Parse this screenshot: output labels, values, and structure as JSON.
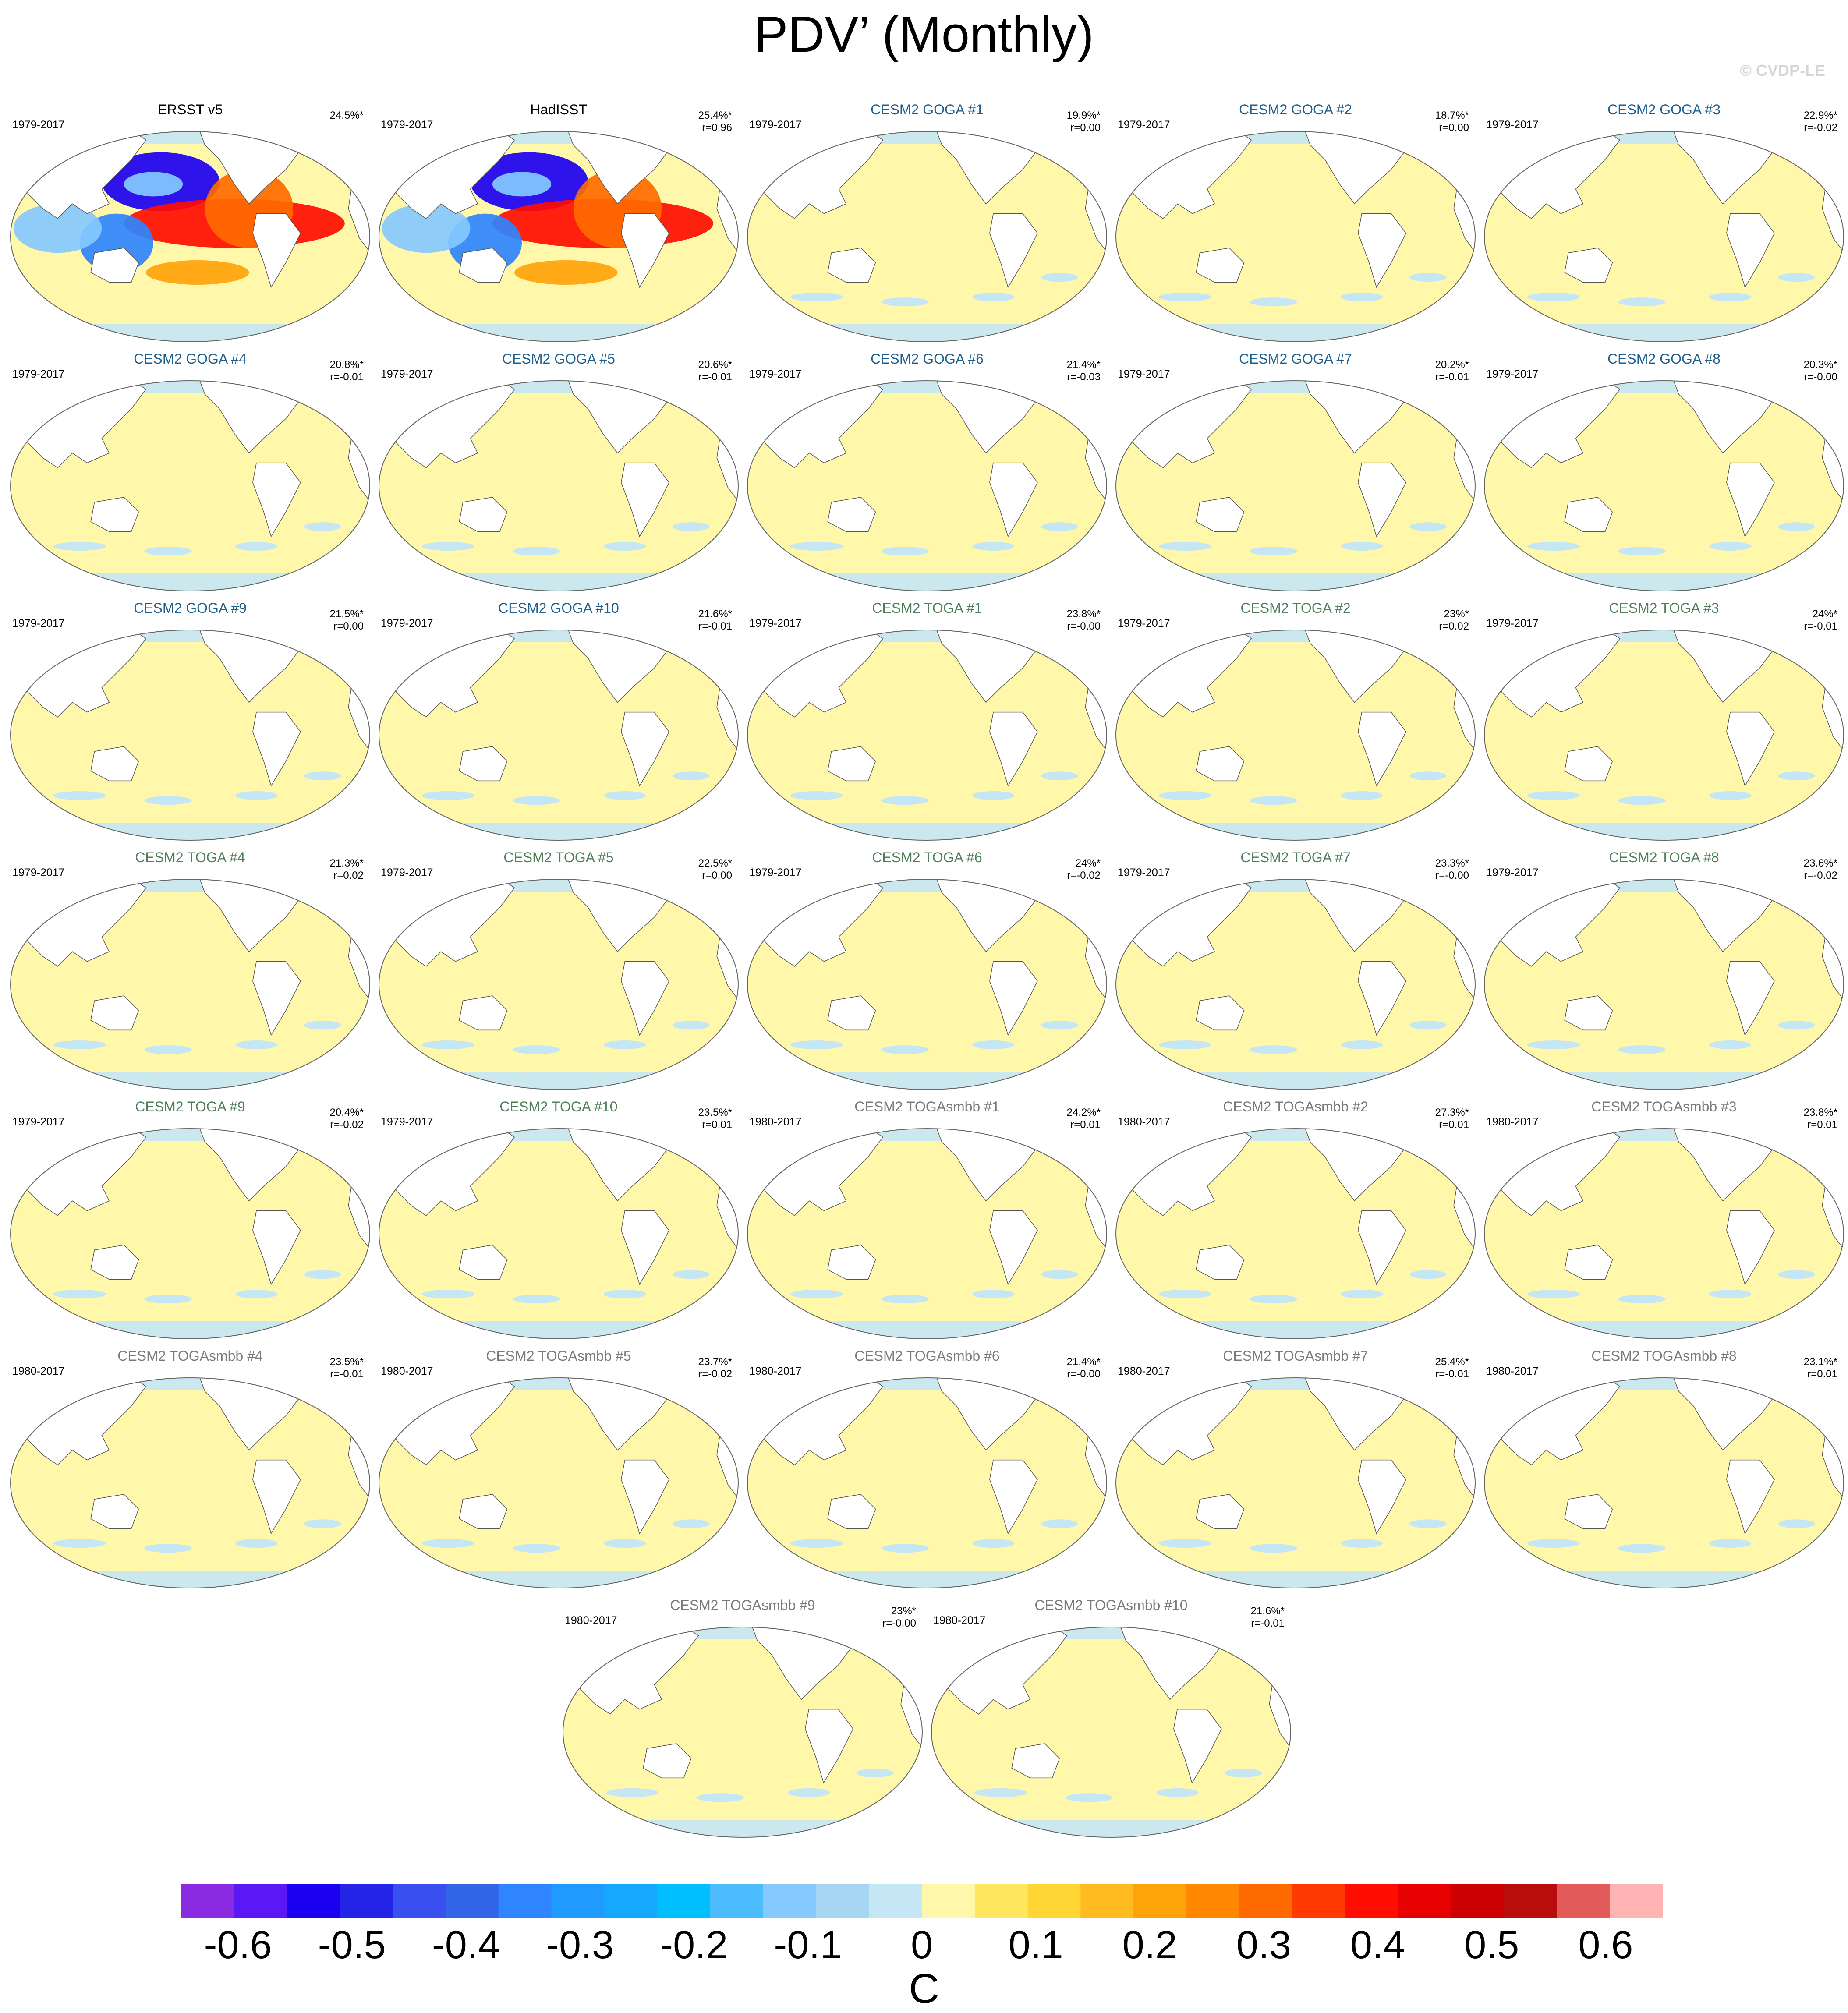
{
  "title": "PDV’ (Monthly)",
  "watermark": "© CVDP-LE",
  "chart_data": {
    "type": "heatmap",
    "description_units": "C",
    "colorbar": {
      "label": "C",
      "tick_labels": [
        "-0.6",
        "-0.5",
        "-0.4",
        "-0.3",
        "-0.2",
        "-0.1",
        "0",
        "0.1",
        "0.2",
        "0.3",
        "0.4",
        "0.5",
        "0.6"
      ],
      "tick_values": [
        -0.6,
        -0.5,
        -0.4,
        -0.3,
        -0.2,
        -0.1,
        0,
        0.1,
        0.2,
        0.3,
        0.4,
        0.5,
        0.6
      ],
      "colors": [
        "#8a2be2",
        "#5a18f5",
        "#1c00f0",
        "#2424e6",
        "#3a4ff0",
        "#3366e6",
        "#2f84ff",
        "#1f9bff",
        "#14a8ff",
        "#00bfff",
        "#4cbcff",
        "#85c9ff",
        "#a7d6f2",
        "#c4e6f5",
        "#fff7aa",
        "#ffe860",
        "#ffd633",
        "#ffbb1f",
        "#ffa30a",
        "#ff8800",
        "#ff6a00",
        "#ff3a00",
        "#ff0d00",
        "#e60000",
        "#cc0000",
        "#b80d0d",
        "#e25a5a",
        "#ffb3b3"
      ],
      "range": [
        -0.65,
        0.65
      ]
    },
    "panels": [
      {
        "title": "ERSST v5",
        "years": "1979-2017",
        "pct": "24.5%*",
        "corr": "",
        "group": "obs"
      },
      {
        "title": "HadISST",
        "years": "1979-2017",
        "pct": "25.4%*",
        "corr": "r=0.96",
        "group": "obs"
      },
      {
        "title": "CESM2 GOGA #1",
        "years": "1979-2017",
        "pct": "19.9%*",
        "corr": "r=0.00",
        "group": "goga"
      },
      {
        "title": "CESM2 GOGA #2",
        "years": "1979-2017",
        "pct": "18.7%*",
        "corr": "r=0.00",
        "group": "goga"
      },
      {
        "title": "CESM2 GOGA #3",
        "years": "1979-2017",
        "pct": "22.9%*",
        "corr": "r=-0.02",
        "group": "goga"
      },
      {
        "title": "CESM2 GOGA #4",
        "years": "1979-2017",
        "pct": "20.8%*",
        "corr": "r=-0.01",
        "group": "goga"
      },
      {
        "title": "CESM2 GOGA #5",
        "years": "1979-2017",
        "pct": "20.6%*",
        "corr": "r=-0.01",
        "group": "goga"
      },
      {
        "title": "CESM2 GOGA #6",
        "years": "1979-2017",
        "pct": "21.4%*",
        "corr": "r=-0.03",
        "group": "goga"
      },
      {
        "title": "CESM2 GOGA #7",
        "years": "1979-2017",
        "pct": "20.2%*",
        "corr": "r=-0.01",
        "group": "goga"
      },
      {
        "title": "CESM2 GOGA #8",
        "years": "1979-2017",
        "pct": "20.3%*",
        "corr": "r=-0.00",
        "group": "goga"
      },
      {
        "title": "CESM2 GOGA #9",
        "years": "1979-2017",
        "pct": "21.5%*",
        "corr": "r=0.00",
        "group": "goga"
      },
      {
        "title": "CESM2 GOGA #10",
        "years": "1979-2017",
        "pct": "21.6%*",
        "corr": "r=-0.01",
        "group": "goga"
      },
      {
        "title": "CESM2 TOGA #1",
        "years": "1979-2017",
        "pct": "23.8%*",
        "corr": "r=-0.00",
        "group": "toga"
      },
      {
        "title": "CESM2 TOGA #2",
        "years": "1979-2017",
        "pct": "23%*",
        "corr": "r=0.02",
        "group": "toga"
      },
      {
        "title": "CESM2 TOGA #3",
        "years": "1979-2017",
        "pct": "24%*",
        "corr": "r=-0.01",
        "group": "toga"
      },
      {
        "title": "CESM2 TOGA #4",
        "years": "1979-2017",
        "pct": "21.3%*",
        "corr": "r=0.02",
        "group": "toga"
      },
      {
        "title": "CESM2 TOGA #5",
        "years": "1979-2017",
        "pct": "22.5%*",
        "corr": "r=0.00",
        "group": "toga"
      },
      {
        "title": "CESM2 TOGA #6",
        "years": "1979-2017",
        "pct": "24%*",
        "corr": "r=-0.02",
        "group": "toga"
      },
      {
        "title": "CESM2 TOGA #7",
        "years": "1979-2017",
        "pct": "23.3%*",
        "corr": "r=-0.00",
        "group": "toga"
      },
      {
        "title": "CESM2 TOGA #8",
        "years": "1979-2017",
        "pct": "23.6%*",
        "corr": "r=-0.02",
        "group": "toga"
      },
      {
        "title": "CESM2 TOGA #9",
        "years": "1979-2017",
        "pct": "20.4%*",
        "corr": "r=-0.02",
        "group": "toga"
      },
      {
        "title": "CESM2 TOGA #10",
        "years": "1979-2017",
        "pct": "23.5%*",
        "corr": "r=0.01",
        "group": "toga"
      },
      {
        "title": "CESM2 TOGAsmbb #1",
        "years": "1980-2017",
        "pct": "24.2%*",
        "corr": "r=0.01",
        "group": "smbb"
      },
      {
        "title": "CESM2 TOGAsmbb #2",
        "years": "1980-2017",
        "pct": "27.3%*",
        "corr": "r=0.01",
        "group": "smbb"
      },
      {
        "title": "CESM2 TOGAsmbb #3",
        "years": "1980-2017",
        "pct": "23.8%*",
        "corr": "r=0.01",
        "group": "smbb"
      },
      {
        "title": "CESM2 TOGAsmbb #4",
        "years": "1980-2017",
        "pct": "23.5%*",
        "corr": "r=-0.01",
        "group": "smbb"
      },
      {
        "title": "CESM2 TOGAsmbb #5",
        "years": "1980-2017",
        "pct": "23.7%*",
        "corr": "r=-0.02",
        "group": "smbb"
      },
      {
        "title": "CESM2 TOGAsmbb #6",
        "years": "1980-2017",
        "pct": "21.4%*",
        "corr": "r=-0.00",
        "group": "smbb"
      },
      {
        "title": "CESM2 TOGAsmbb #7",
        "years": "1980-2017",
        "pct": "25.4%*",
        "corr": "r=-0.01",
        "group": "smbb"
      },
      {
        "title": "CESM2 TOGAsmbb #8",
        "years": "1980-2017",
        "pct": "23.1%*",
        "corr": "r=0.01",
        "group": "smbb"
      },
      {
        "title": "CESM2 TOGAsmbb #9",
        "years": "1980-2017",
        "pct": "23%*",
        "corr": "r=-0.00",
        "group": "smbb"
      },
      {
        "title": "CESM2 TOGAsmbb #10",
        "years": "1980-2017",
        "pct": "21.6%*",
        "corr": "r=-0.01",
        "group": "smbb"
      }
    ]
  },
  "group_title_colors": {
    "obs": "#000000",
    "goga": "#1f5f8b",
    "toga": "#4f7f5a",
    "smbb": "#7a7a7a"
  },
  "panel_fill_colors": {
    "ocean_background": "#fff7aa",
    "sea_ice_negative": "#c4e6f5",
    "land": "#ffffff"
  }
}
